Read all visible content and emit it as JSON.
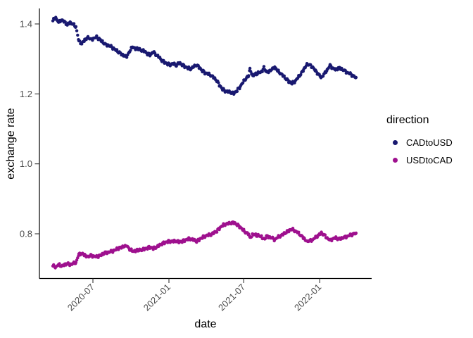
{
  "figure": {
    "background": "#ffffff"
  },
  "chart_data": {
    "type": "scatter",
    "title": "",
    "x_axis": {
      "label": "date",
      "ticks": [
        "2020-07",
        "2021-01",
        "2021-07",
        "2022-01"
      ]
    },
    "y_axis": {
      "label": "exchange rate",
      "ticks": [
        "0.8",
        "1.0",
        "1.2",
        "1.4"
      ],
      "range": [
        0.67,
        1.44
      ]
    },
    "legend": {
      "title": "direction",
      "position": "right",
      "entries": [
        {
          "label": "CADtoUSD",
          "color": "#191970"
        },
        {
          "label": "USDtoCAD",
          "color": "#9E108E"
        }
      ]
    },
    "dates": [
      "2020-03-26",
      "2020-04-02",
      "2020-04-09",
      "2020-04-16",
      "2020-04-23",
      "2020-04-30",
      "2020-05-07",
      "2020-05-14",
      "2020-05-21",
      "2020-05-28",
      "2020-06-04",
      "2020-06-11",
      "2020-06-19",
      "2020-06-26",
      "2020-07-03",
      "2020-07-10",
      "2020-07-17",
      "2020-07-24",
      "2020-07-31",
      "2020-08-07",
      "2020-08-14",
      "2020-08-21",
      "2020-08-28",
      "2020-09-04",
      "2020-09-11",
      "2020-09-21",
      "2020-09-28",
      "2020-10-05",
      "2020-10-12",
      "2020-10-20",
      "2020-10-27",
      "2020-11-03",
      "2020-11-10",
      "2020-11-17",
      "2020-11-24",
      "2020-12-01",
      "2020-12-08",
      "2020-12-15",
      "2020-12-22",
      "2020-12-29",
      "2021-01-05",
      "2021-01-12",
      "2021-01-19",
      "2021-01-26",
      "2021-02-02",
      "2021-02-09",
      "2021-02-16",
      "2021-02-23",
      "2021-03-02",
      "2021-03-09",
      "2021-03-16",
      "2021-03-23",
      "2021-03-30",
      "2021-04-06",
      "2021-04-13",
      "2021-04-20",
      "2021-04-27",
      "2021-05-04",
      "2021-05-11",
      "2021-05-18",
      "2021-05-25",
      "2021-06-01",
      "2021-06-08",
      "2021-06-15",
      "2021-06-22",
      "2021-06-29",
      "2021-07-06",
      "2021-07-13",
      "2021-07-16",
      "2021-07-23",
      "2021-07-30",
      "2021-08-06",
      "2021-08-13",
      "2021-08-19",
      "2021-08-26",
      "2021-09-02",
      "2021-09-09",
      "2021-09-14",
      "2021-09-21",
      "2021-09-28",
      "2021-10-05",
      "2021-10-12",
      "2021-10-19",
      "2021-10-26",
      "2021-11-02",
      "2021-11-09",
      "2021-11-16",
      "2021-11-23",
      "2021-12-01",
      "2021-12-08",
      "2021-12-15",
      "2021-12-22",
      "2021-12-29",
      "2022-01-05",
      "2022-01-12",
      "2022-01-19",
      "2022-01-26",
      "2022-02-02",
      "2022-02-09",
      "2022-02-16",
      "2022-02-23",
      "2022-03-02",
      "2022-03-09",
      "2022-03-16",
      "2022-03-23",
      "2022-03-30"
    ],
    "series": [
      {
        "name": "CADtoUSD",
        "color": "#191970",
        "values": [
          1.41,
          1.418,
          1.404,
          1.412,
          1.406,
          1.398,
          1.404,
          1.399,
          1.392,
          1.35,
          1.344,
          1.354,
          1.362,
          1.355,
          1.359,
          1.362,
          1.356,
          1.349,
          1.341,
          1.339,
          1.335,
          1.329,
          1.323,
          1.317,
          1.311,
          1.306,
          1.323,
          1.334,
          1.33,
          1.328,
          1.325,
          1.322,
          1.315,
          1.312,
          1.32,
          1.312,
          1.305,
          1.296,
          1.29,
          1.286,
          1.284,
          1.286,
          1.282,
          1.289,
          1.284,
          1.278,
          1.274,
          1.272,
          1.278,
          1.283,
          1.275,
          1.266,
          1.26,
          1.257,
          1.253,
          1.246,
          1.238,
          1.224,
          1.213,
          1.208,
          1.206,
          1.204,
          1.202,
          1.21,
          1.22,
          1.233,
          1.244,
          1.252,
          1.27,
          1.252,
          1.256,
          1.26,
          1.263,
          1.275,
          1.261,
          1.266,
          1.271,
          1.277,
          1.266,
          1.259,
          1.251,
          1.243,
          1.235,
          1.23,
          1.236,
          1.246,
          1.257,
          1.269,
          1.285,
          1.282,
          1.277,
          1.265,
          1.256,
          1.247,
          1.257,
          1.269,
          1.281,
          1.273,
          1.269,
          1.274,
          1.271,
          1.266,
          1.261,
          1.257,
          1.251,
          1.247
        ]
      },
      {
        "name": "USDtoCAD",
        "color": "#9E108E",
        "values": [
          0.709,
          0.705,
          0.712,
          0.708,
          0.711,
          0.715,
          0.712,
          0.715,
          0.718,
          0.741,
          0.744,
          0.739,
          0.734,
          0.738,
          0.736,
          0.734,
          0.737,
          0.741,
          0.746,
          0.747,
          0.749,
          0.752,
          0.756,
          0.759,
          0.763,
          0.766,
          0.756,
          0.75,
          0.752,
          0.753,
          0.755,
          0.756,
          0.76,
          0.762,
          0.758,
          0.762,
          0.766,
          0.772,
          0.775,
          0.778,
          0.779,
          0.778,
          0.78,
          0.776,
          0.779,
          0.782,
          0.785,
          0.786,
          0.782,
          0.779,
          0.784,
          0.79,
          0.794,
          0.796,
          0.798,
          0.803,
          0.808,
          0.817,
          0.824,
          0.828,
          0.829,
          0.831,
          0.832,
          0.826,
          0.82,
          0.811,
          0.804,
          0.799,
          0.787,
          0.799,
          0.796,
          0.794,
          0.792,
          0.784,
          0.793,
          0.79,
          0.787,
          0.783,
          0.79,
          0.794,
          0.799,
          0.805,
          0.81,
          0.813,
          0.809,
          0.803,
          0.796,
          0.788,
          0.778,
          0.78,
          0.783,
          0.79,
          0.796,
          0.802,
          0.796,
          0.788,
          0.781,
          0.786,
          0.788,
          0.785,
          0.787,
          0.79,
          0.793,
          0.796,
          0.799,
          0.802
        ]
      }
    ]
  }
}
